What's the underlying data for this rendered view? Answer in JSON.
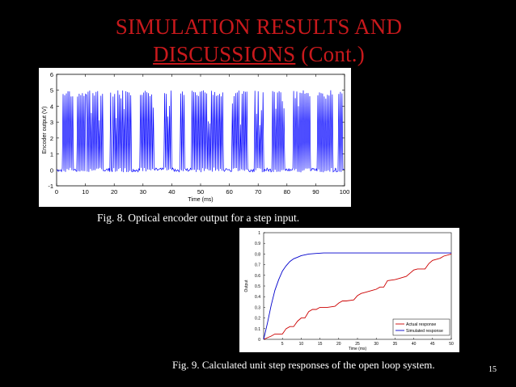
{
  "slide": {
    "title_line1": "SIMULATION RESULTS AND",
    "title_line2_underlined": "DISCUSSIONS",
    "title_line2_rest": " (Cont.)",
    "caption1": "Fig. 8. Optical encoder output for a step input.",
    "caption2": "Fig. 9. Calculated unit step responses of the open loop system.",
    "page_number": "15",
    "title_color": "#c8191c"
  },
  "chart_data": [
    {
      "type": "line",
      "xlabel": "Time (ms)",
      "ylabel": "Encoder output (V)",
      "xlim": [
        0,
        100
      ],
      "ylim": [
        -1,
        6
      ],
      "xticks": [
        0,
        10,
        20,
        30,
        40,
        50,
        60,
        70,
        80,
        90,
        100
      ],
      "yticks": [
        -1,
        0,
        1,
        2,
        3,
        4,
        5,
        6
      ],
      "grid": false,
      "series": [
        {
          "color": "#0000ff",
          "pulse_bursts_ms": [
            [
              2,
              6
            ],
            [
              7,
              16.5
            ],
            [
              18.5,
              26
            ],
            [
              29,
              34
            ],
            [
              37,
              40
            ],
            [
              43,
              44.5
            ],
            [
              46.5,
              58
            ],
            [
              61,
              66.5
            ],
            [
              68.5,
              72
            ],
            [
              75,
              79
            ],
            [
              82,
              88
            ],
            [
              90.5,
              96
            ],
            [
              98,
              99.5
            ]
          ],
          "pulse_high": 5,
          "pulse_low": 0
        }
      ]
    },
    {
      "type": "line",
      "xlabel": "Time (ms)",
      "ylabel": "Output",
      "xlim": [
        0,
        50
      ],
      "ylim": [
        0,
        1
      ],
      "xticks": [
        0,
        5,
        10,
        15,
        20,
        25,
        30,
        35,
        40,
        45,
        50
      ],
      "yticks": [
        0,
        0.1,
        0.2,
        0.3,
        0.4,
        0.5,
        0.6,
        0.7,
        0.8,
        0.9,
        1
      ],
      "legend_position": "bottom-right",
      "series": [
        {
          "name": "Actual response",
          "color": "#cc0000",
          "x": [
            0,
            2,
            3,
            5,
            6,
            7,
            8,
            9,
            10,
            11,
            12,
            13,
            14,
            15,
            17,
            19,
            20,
            21,
            22,
            24,
            25,
            26,
            27,
            29,
            30,
            31,
            32,
            33,
            35,
            36,
            38,
            40,
            41,
            43,
            44,
            45,
            47,
            48,
            50
          ],
          "y": [
            0,
            0.03,
            0.05,
            0.05,
            0.1,
            0.12,
            0.12,
            0.17,
            0.2,
            0.2,
            0.26,
            0.28,
            0.28,
            0.3,
            0.3,
            0.31,
            0.34,
            0.36,
            0.36,
            0.37,
            0.41,
            0.43,
            0.44,
            0.46,
            0.47,
            0.49,
            0.49,
            0.55,
            0.56,
            0.57,
            0.59,
            0.65,
            0.66,
            0.66,
            0.71,
            0.74,
            0.76,
            0.78,
            0.8
          ]
        },
        {
          "name": "Simulated response",
          "color": "#0000cc",
          "x": [
            0,
            1,
            2,
            3,
            4,
            5,
            6,
            7,
            8,
            9,
            10,
            12,
            14,
            16,
            18,
            20,
            25,
            30,
            35,
            40,
            45,
            50
          ],
          "y": [
            0,
            0.15,
            0.32,
            0.46,
            0.56,
            0.64,
            0.69,
            0.73,
            0.755,
            0.77,
            0.785,
            0.8,
            0.805,
            0.81,
            0.81,
            0.81,
            0.81,
            0.81,
            0.81,
            0.81,
            0.81,
            0.81
          ]
        }
      ]
    }
  ]
}
